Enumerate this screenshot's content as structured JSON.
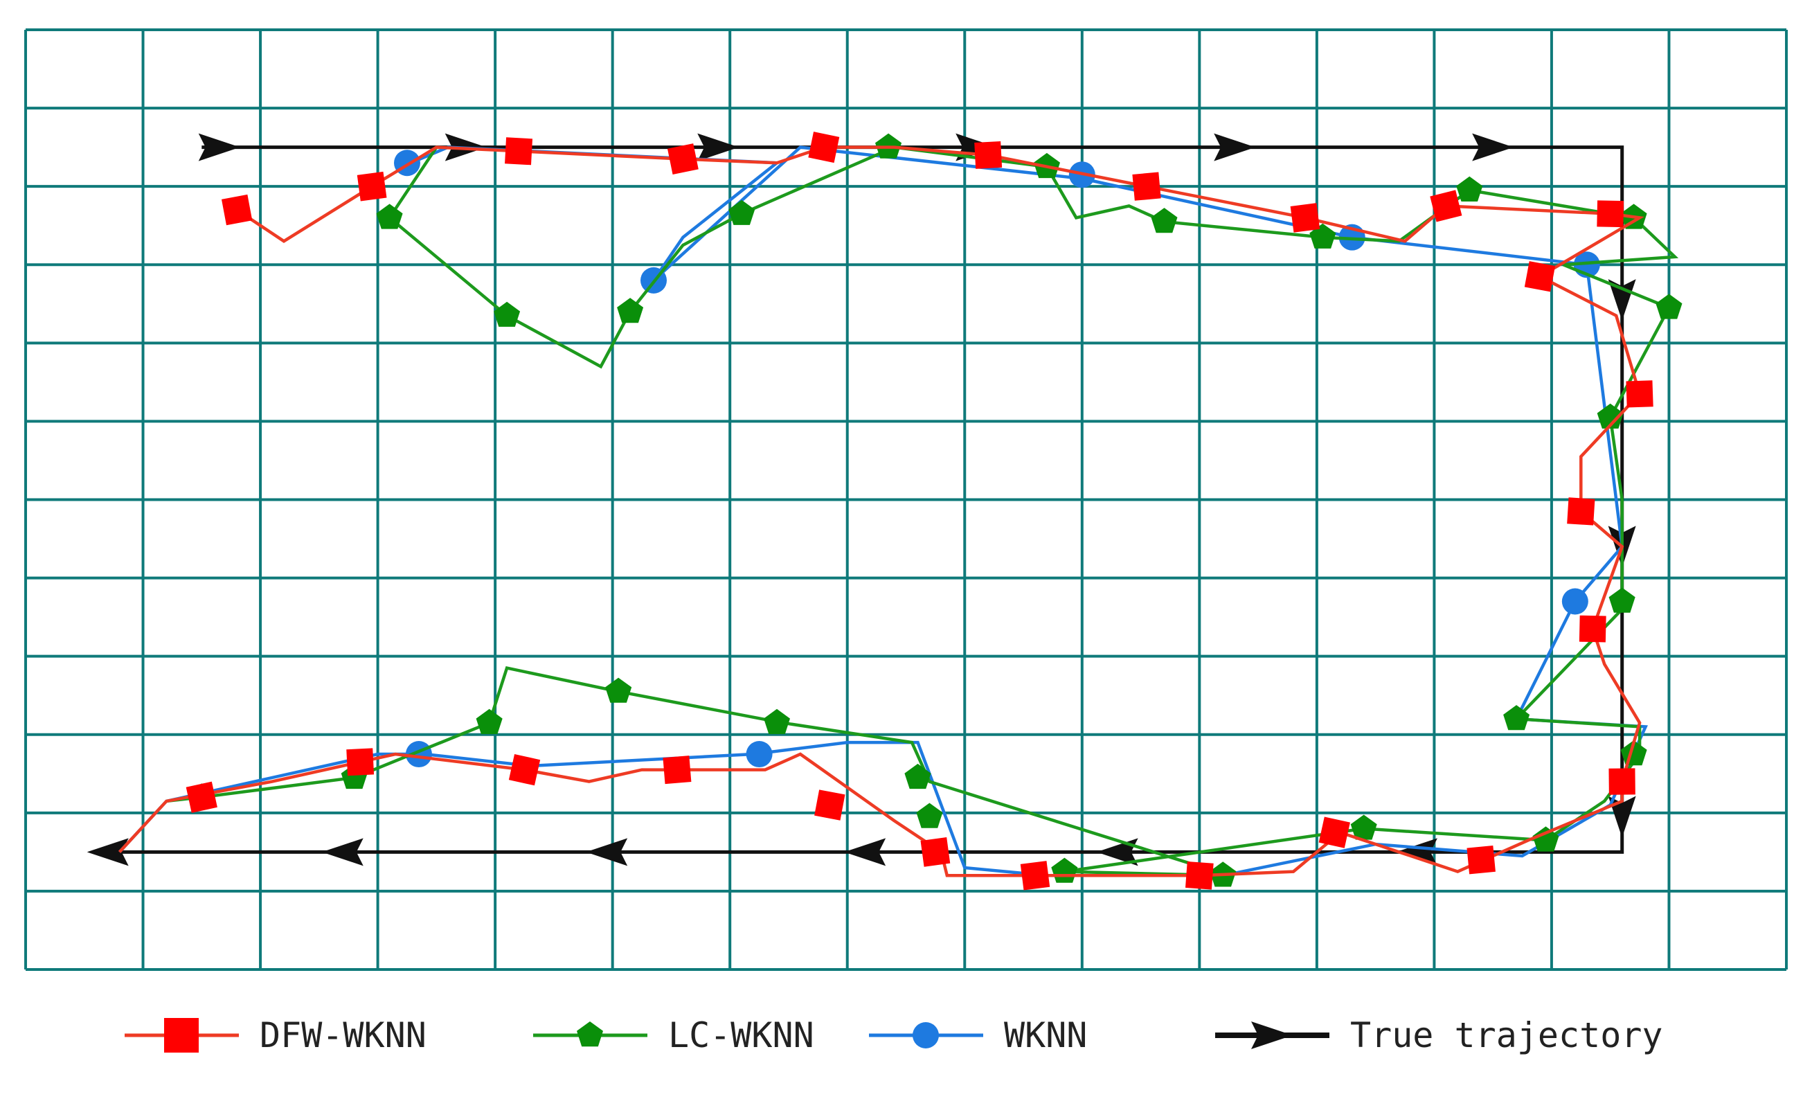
{
  "chart_data": {
    "type": "line",
    "title": "",
    "xlabel": "",
    "ylabel": "",
    "xlim": [
      0,
      15
    ],
    "ylim": [
      0,
      12
    ],
    "grid": true,
    "legend": "bottom",
    "colors": {
      "grid": "#0f7a7a",
      "DFW-WKNN": "#ee3b24",
      "DFW-WKNN-marker": "#ff0000",
      "LC-WKNN": "#1d9a1d",
      "LC-WKNN-marker": "#0a8f0a",
      "WKNN": "#1e7ae0",
      "True trajectory": "#111111"
    },
    "series": [
      {
        "name": "True trajectory",
        "marker": "arrow",
        "points": [
          [
            1.5,
            10.5
          ],
          [
            13.6,
            10.5
          ],
          [
            13.6,
            1.5
          ],
          [
            0.8,
            1.5
          ]
        ],
        "arrow_points": [
          [
            1.65,
            10.5,
            0
          ],
          [
            3.75,
            10.5,
            0
          ],
          [
            5.9,
            10.5,
            0
          ],
          [
            8.1,
            10.5,
            0
          ],
          [
            10.3,
            10.5,
            0
          ],
          [
            12.5,
            10.5,
            0
          ],
          [
            13.6,
            8.55,
            90
          ],
          [
            13.6,
            5.4,
            90
          ],
          [
            13.6,
            1.95,
            90
          ],
          [
            11.85,
            1.5,
            180
          ],
          [
            9.3,
            1.5,
            180
          ],
          [
            7.15,
            1.5,
            180
          ],
          [
            4.95,
            1.5,
            180
          ],
          [
            2.7,
            1.5,
            180
          ],
          [
            0.7,
            1.5,
            180
          ]
        ]
      },
      {
        "name": "WKNN",
        "marker": "circle",
        "points": [
          [
            3.2,
            10.25
          ],
          [
            3.6,
            10.5
          ],
          [
            6.4,
            10.3
          ],
          [
            5.6,
            9.35
          ],
          [
            5.35,
            8.8
          ],
          [
            6.6,
            10.5
          ],
          [
            9.0,
            10.1
          ],
          [
            11.3,
            9.35
          ],
          [
            13.3,
            9.0
          ],
          [
            13.6,
            5.4
          ],
          [
            13.2,
            4.7
          ],
          [
            12.7,
            3.2
          ],
          [
            13.8,
            3.1
          ],
          [
            13.5,
            2.1
          ],
          [
            12.75,
            1.45
          ],
          [
            11.5,
            1.6
          ],
          [
            10.2,
            1.2
          ],
          [
            8.7,
            1.2
          ],
          [
            8.0,
            1.3
          ],
          [
            7.6,
            2.9
          ],
          [
            7.0,
            2.9
          ],
          [
            6.2,
            2.75
          ],
          [
            4.3,
            2.6
          ],
          [
            3.4,
            2.75
          ],
          [
            3.0,
            2.75
          ],
          [
            1.2,
            2.15
          ],
          [
            0.8,
            1.5
          ]
        ],
        "marker_points": [
          [
            3.25,
            10.3
          ],
          [
            9.0,
            10.15
          ],
          [
            11.3,
            9.35
          ],
          [
            13.3,
            9.0
          ],
          [
            5.35,
            8.8
          ],
          [
            13.2,
            4.7
          ],
          [
            6.25,
            2.75
          ],
          [
            3.35,
            2.75
          ]
        ]
      },
      {
        "name": "LC-WKNN",
        "marker": "pentagon",
        "points": [
          [
            3.5,
            10.5
          ],
          [
            3.1,
            9.6
          ],
          [
            4.1,
            8.35
          ],
          [
            4.9,
            7.7
          ],
          [
            5.15,
            8.4
          ],
          [
            5.6,
            9.25
          ],
          [
            6.1,
            9.65
          ],
          [
            7.4,
            10.5
          ],
          [
            8.7,
            10.25
          ],
          [
            8.95,
            9.6
          ],
          [
            9.4,
            9.75
          ],
          [
            9.7,
            9.55
          ],
          [
            11.05,
            9.35
          ],
          [
            11.7,
            9.3
          ],
          [
            12.3,
            9.95
          ],
          [
            13.7,
            9.6
          ],
          [
            14.05,
            9.1
          ],
          [
            13.1,
            9.0
          ],
          [
            14.0,
            8.45
          ],
          [
            13.5,
            7.05
          ],
          [
            13.6,
            6.0
          ],
          [
            13.6,
            4.6
          ],
          [
            12.7,
            3.2
          ],
          [
            13.75,
            3.1
          ],
          [
            13.75,
            2.75
          ],
          [
            13.45,
            2.15
          ],
          [
            12.95,
            1.65
          ],
          [
            11.4,
            1.8
          ],
          [
            8.85,
            1.25
          ],
          [
            10.25,
            1.2
          ],
          [
            7.7,
            2.4
          ],
          [
            7.55,
            2.9
          ],
          [
            6.45,
            3.15
          ],
          [
            5.05,
            3.55
          ],
          [
            4.1,
            3.85
          ],
          [
            3.95,
            3.15
          ],
          [
            2.8,
            2.45
          ],
          [
            1.5,
            2.2
          ],
          [
            1.2,
            2.15
          ]
        ],
        "marker_points": [
          [
            3.1,
            9.6
          ],
          [
            4.1,
            8.35
          ],
          [
            5.15,
            8.4
          ],
          [
            6.1,
            9.65
          ],
          [
            7.35,
            10.5
          ],
          [
            8.7,
            10.25
          ],
          [
            9.7,
            9.55
          ],
          [
            11.05,
            9.35
          ],
          [
            12.3,
            9.95
          ],
          [
            13.7,
            9.6
          ],
          [
            14.0,
            8.45
          ],
          [
            13.5,
            7.05
          ],
          [
            13.6,
            4.7
          ],
          [
            12.7,
            3.2
          ],
          [
            13.7,
            2.75
          ],
          [
            12.95,
            1.65
          ],
          [
            11.4,
            1.8
          ],
          [
            8.85,
            1.25
          ],
          [
            10.2,
            1.2
          ],
          [
            7.6,
            2.45
          ],
          [
            7.7,
            1.95
          ],
          [
            6.4,
            3.15
          ],
          [
            5.05,
            3.55
          ],
          [
            3.95,
            3.15
          ],
          [
            2.8,
            2.45
          ],
          [
            1.5,
            2.2
          ]
        ]
      },
      {
        "name": "DFW-WKNN",
        "marker": "square",
        "points": [
          [
            1.8,
            9.7
          ],
          [
            2.2,
            9.3
          ],
          [
            2.95,
            10.0
          ],
          [
            3.5,
            10.5
          ],
          [
            4.2,
            10.45
          ],
          [
            5.6,
            10.35
          ],
          [
            6.4,
            10.3
          ],
          [
            6.8,
            10.5
          ],
          [
            7.4,
            10.5
          ],
          [
            8.2,
            10.4
          ],
          [
            9.55,
            10.0
          ],
          [
            10.9,
            9.6
          ],
          [
            11.75,
            9.3
          ],
          [
            12.1,
            9.75
          ],
          [
            13.5,
            9.65
          ],
          [
            13.75,
            9.6
          ],
          [
            12.9,
            8.85
          ],
          [
            13.55,
            8.35
          ],
          [
            13.75,
            7.35
          ],
          [
            13.25,
            6.55
          ],
          [
            13.25,
            5.85
          ],
          [
            13.6,
            5.4
          ],
          [
            13.35,
            4.35
          ],
          [
            13.45,
            3.9
          ],
          [
            13.75,
            3.15
          ],
          [
            13.6,
            2.4
          ],
          [
            13.6,
            2.15
          ],
          [
            12.8,
            1.65
          ],
          [
            12.2,
            1.25
          ],
          [
            11.2,
            1.75
          ],
          [
            10.8,
            1.25
          ],
          [
            10.0,
            1.2
          ],
          [
            8.55,
            1.2
          ],
          [
            7.85,
            1.2
          ],
          [
            7.8,
            1.5
          ],
          [
            7.4,
            1.9
          ],
          [
            6.6,
            2.75
          ],
          [
            6.3,
            2.55
          ],
          [
            5.25,
            2.55
          ],
          [
            4.8,
            2.4
          ],
          [
            4.25,
            2.55
          ],
          [
            3.15,
            2.75
          ],
          [
            2.85,
            2.65
          ],
          [
            2.1,
            2.4
          ],
          [
            1.2,
            2.15
          ],
          [
            0.8,
            1.5
          ]
        ],
        "marker_points": [
          [
            1.8,
            9.7
          ],
          [
            2.95,
            10.0
          ],
          [
            4.2,
            10.45
          ],
          [
            5.6,
            10.35
          ],
          [
            6.8,
            10.5
          ],
          [
            8.2,
            10.4
          ],
          [
            9.55,
            10.0
          ],
          [
            10.9,
            9.6
          ],
          [
            12.1,
            9.75
          ],
          [
            13.5,
            9.65
          ],
          [
            12.9,
            8.85
          ],
          [
            13.75,
            7.35
          ],
          [
            13.25,
            5.85
          ],
          [
            13.35,
            4.35
          ],
          [
            13.6,
            2.4
          ],
          [
            12.4,
            1.4
          ],
          [
            11.15,
            1.75
          ],
          [
            10.0,
            1.2
          ],
          [
            8.6,
            1.2
          ],
          [
            7.75,
            1.5
          ],
          [
            6.85,
            2.1
          ],
          [
            5.55,
            2.55
          ],
          [
            4.25,
            2.55
          ],
          [
            2.85,
            2.65
          ],
          [
            1.5,
            2.2
          ]
        ]
      }
    ],
    "legend_entries": [
      "DFW-WKNN",
      "LC-WKNN",
      "WKNN",
      "True trajectory"
    ]
  }
}
